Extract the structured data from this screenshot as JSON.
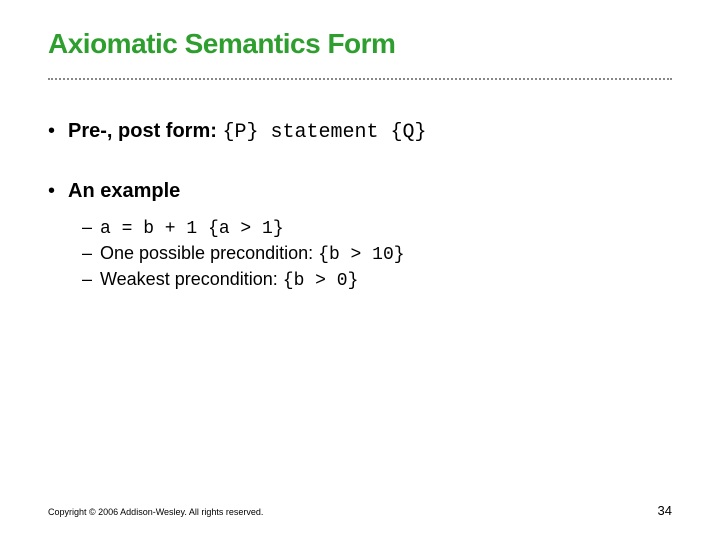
{
  "title": "Axiomatic Semantics Form",
  "bullets": {
    "item0": {
      "label": "Pre-, post form:",
      "code": "{P} statement {Q}"
    },
    "item1": {
      "label": "An example"
    }
  },
  "sub": {
    "s0": {
      "code": "a = b + 1  {a > 1}"
    },
    "s1": {
      "prefix": "One possible precondition: ",
      "code": "{b > 10}"
    },
    "s2": {
      "prefix": "Weakest precondition:            ",
      "code": "{b > 0}"
    }
  },
  "footer": {
    "copyright": "Copyright © 2006 Addison-Wesley. All rights reserved.",
    "page": "34"
  },
  "colors": {
    "title": "#2e9e2e",
    "text": "#000000",
    "background": "#ffffff",
    "rule": "#888888"
  },
  "typography": {
    "title_fontsize": 28,
    "body_fontsize": 20,
    "sub_fontsize": 18,
    "footer_fontsize": 9,
    "pagenum_fontsize": 13
  }
}
